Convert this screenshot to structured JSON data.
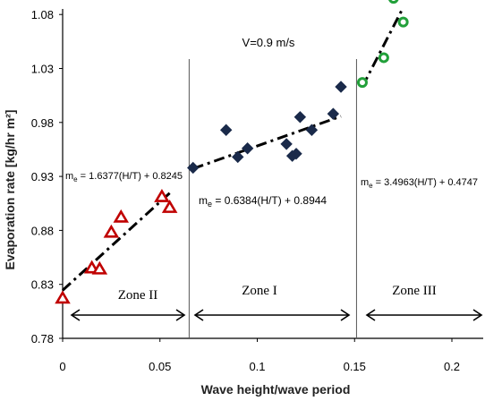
{
  "chart_data": {
    "type": "scatter",
    "title": "",
    "annotation_title": "V=0.9 m/s",
    "xlabel": "Wave height/wave period",
    "ylabel": "Evaporation rate [kg/hr m²]",
    "xlim": [
      0,
      0.22
    ],
    "ylim": [
      0.78,
      1.1
    ],
    "xticks": [
      "0",
      "0.05",
      "0.1",
      "0.15",
      "0.2"
    ],
    "yticks": [
      "0.78",
      "0.83",
      "0.88",
      "0.93",
      "0.98",
      "1.03",
      "1.08"
    ],
    "grid": false,
    "dividers_x": [
      0.065,
      0.151
    ],
    "series": [
      {
        "zone": "Zone II",
        "marker": "triangle",
        "color": "#c00000",
        "points": [
          {
            "x": 0.0,
            "y": 0.817
          },
          {
            "x": 0.015,
            "y": 0.845
          },
          {
            "x": 0.019,
            "y": 0.844
          },
          {
            "x": 0.025,
            "y": 0.878
          },
          {
            "x": 0.03,
            "y": 0.892
          },
          {
            "x": 0.051,
            "y": 0.911
          },
          {
            "x": 0.055,
            "y": 0.901
          }
        ]
      },
      {
        "zone": "Zone I",
        "marker": "diamond",
        "color": "#1a2a4a",
        "points": [
          {
            "x": 0.067,
            "y": 0.938
          },
          {
            "x": 0.084,
            "y": 0.973
          },
          {
            "x": 0.09,
            "y": 0.948
          },
          {
            "x": 0.095,
            "y": 0.956
          },
          {
            "x": 0.115,
            "y": 0.96
          },
          {
            "x": 0.118,
            "y": 0.949
          },
          {
            "x": 0.12,
            "y": 0.951
          },
          {
            "x": 0.122,
            "y": 0.985
          },
          {
            "x": 0.128,
            "y": 0.973
          },
          {
            "x": 0.139,
            "y": 0.988
          },
          {
            "x": 0.143,
            "y": 1.013
          }
        ]
      },
      {
        "zone": "Zone III",
        "marker": "circle",
        "color": "#22a03a",
        "points": [
          {
            "x": 0.154,
            "y": 1.017
          },
          {
            "x": 0.165,
            "y": 1.04
          },
          {
            "x": 0.17,
            "y": 1.095
          },
          {
            "x": 0.175,
            "y": 1.073
          }
        ]
      }
    ],
    "trendlines": [
      {
        "slope": 1.6377,
        "intercept": 0.8245,
        "x_range": [
          0.0,
          0.055
        ],
        "equation": "m = 1.6377(H/T) + 0.8245"
      },
      {
        "slope": 0.6384,
        "intercept": 0.8944,
        "x_range": [
          0.067,
          0.143
        ],
        "equation": "m = 0.6384(H/T) + 0.8944"
      },
      {
        "slope": 3.4963,
        "intercept": 0.4747,
        "x_range": [
          0.154,
          0.175
        ],
        "equation": "m = 3.4963(H/T) + 0.4747"
      }
    ],
    "zones": [
      {
        "label": "Zone II",
        "x_from": 0.0,
        "x_to": 0.065
      },
      {
        "label": "Zone I",
        "x_from": 0.065,
        "x_to": 0.151
      },
      {
        "label": "Zone III",
        "x_from": 0.151,
        "x_to": 0.22
      }
    ]
  }
}
